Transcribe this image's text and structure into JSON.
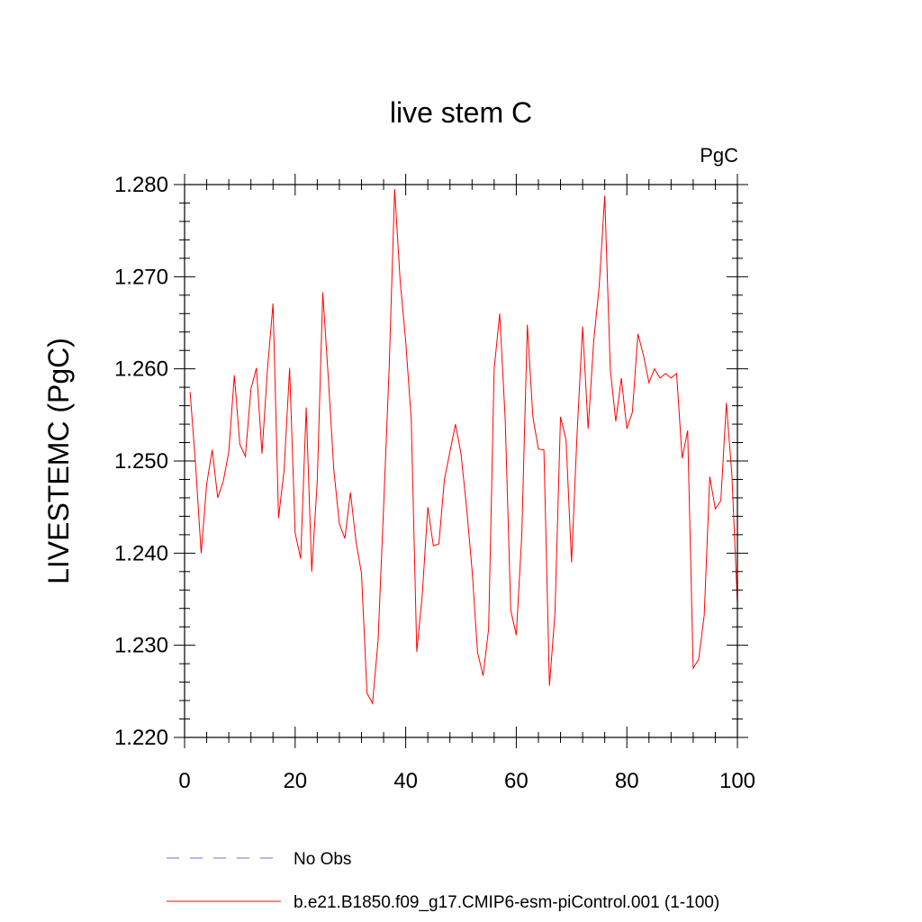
{
  "chart_data": {
    "type": "line",
    "title": "live stem C",
    "units_label": "PgC",
    "ylabel": "LIVESTEMC  (PgC)",
    "xlabel": "",
    "xlim": [
      0,
      100
    ],
    "ylim": [
      1.22,
      1.28
    ],
    "x_ticks": [
      0,
      20,
      40,
      60,
      80,
      100
    ],
    "x_tick_labels": [
      "0",
      "20",
      "40",
      "60",
      "80",
      "100"
    ],
    "y_ticks": [
      1.22,
      1.23,
      1.24,
      1.25,
      1.26,
      1.27,
      1.28
    ],
    "y_tick_labels": [
      "1.220",
      "1.230",
      "1.240",
      "1.250",
      "1.260",
      "1.270",
      "1.280"
    ],
    "grid": false,
    "legend_position": "bottom",
    "series": [
      {
        "name": "b.e21.B1850.f09_g17.CMIP6-esm-piControl.001 (1-100)",
        "color": "#ff0000",
        "style": "solid",
        "x": [
          1,
          2,
          3,
          4,
          5,
          6,
          7,
          8,
          9,
          10,
          11,
          12,
          13,
          14,
          15,
          16,
          17,
          18,
          19,
          20,
          21,
          22,
          23,
          24,
          25,
          26,
          27,
          28,
          29,
          30,
          31,
          32,
          33,
          34,
          35,
          36,
          37,
          38,
          39,
          40,
          41,
          42,
          43,
          44,
          45,
          46,
          47,
          48,
          49,
          50,
          51,
          52,
          53,
          54,
          55,
          56,
          57,
          58,
          59,
          60,
          61,
          62,
          63,
          64,
          65,
          66,
          67,
          68,
          69,
          70,
          71,
          72,
          73,
          74,
          75,
          76,
          77,
          78,
          79,
          80,
          81,
          82,
          83,
          84,
          85,
          86,
          87,
          88,
          89,
          90,
          91,
          92,
          93,
          94,
          95,
          96,
          97,
          98,
          99,
          100
        ],
        "y": [
          1.2575,
          1.2495,
          1.24,
          1.2475,
          1.2512,
          1.246,
          1.2478,
          1.251,
          1.2593,
          1.2518,
          1.2505,
          1.2578,
          1.2601,
          1.2508,
          1.26,
          1.2671,
          1.2438,
          1.249,
          1.2601,
          1.2422,
          1.2394,
          1.2558,
          1.238,
          1.2478,
          1.2683,
          1.259,
          1.249,
          1.2432,
          1.2416,
          1.2466,
          1.2413,
          1.2378,
          1.2248,
          1.2237,
          1.2305,
          1.245,
          1.26,
          1.2795,
          1.2695,
          1.263,
          1.2545,
          1.2293,
          1.2355,
          1.245,
          1.2408,
          1.241,
          1.248,
          1.251,
          1.254,
          1.2508,
          1.245,
          1.2382,
          1.2292,
          1.2267,
          1.2318,
          1.26,
          1.266,
          1.2545,
          1.2338,
          1.2311,
          1.242,
          1.2648,
          1.2548,
          1.2513,
          1.2512,
          1.2256,
          1.2335,
          1.2548,
          1.2523,
          1.239,
          1.253,
          1.2646,
          1.2535,
          1.263,
          1.269,
          1.2788,
          1.26,
          1.2543,
          1.259,
          1.2535,
          1.2553,
          1.2638,
          1.2615,
          1.2585,
          1.26,
          1.259,
          1.2595,
          1.259,
          1.2595,
          1.2503,
          1.2533,
          1.2275,
          1.2285,
          1.2333,
          1.2483,
          1.2448,
          1.2457,
          1.2563,
          1.2485,
          1.2345
        ]
      },
      {
        "name": "No Obs",
        "color": "#6f6fc8",
        "style": "dashed",
        "x": [],
        "y": []
      }
    ]
  }
}
